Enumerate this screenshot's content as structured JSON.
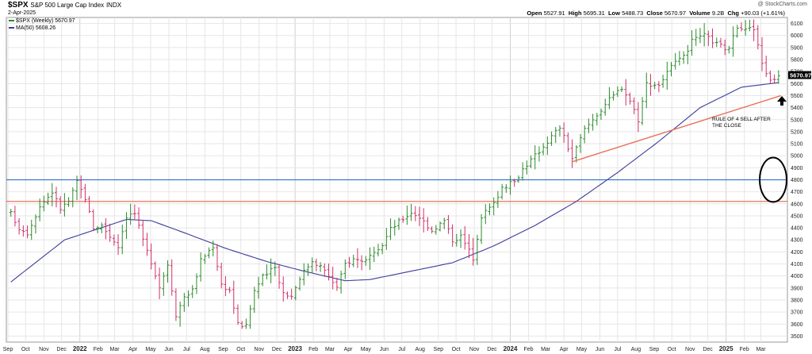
{
  "header": {
    "symbol": "$SPX",
    "description": "S&P 500 Large Cap Index",
    "exchange": "INDX",
    "date": "2-Apr-2025",
    "source": "@ StockCharts.com",
    "stats": {
      "open_label": "Open",
      "open": "5527.91",
      "high_label": "High",
      "high": "5695.31",
      "low_label": "Low",
      "low": "5488.73",
      "close_label": "Close",
      "close": "5670.97",
      "volume_label": "Volume",
      "volume": "9.2B",
      "chg_label": "Chg",
      "chg": "+90.03 (+1.61%)"
    }
  },
  "legend": {
    "price": "$SPX (Weekly) 5670.97",
    "ma": "MA(50) 5608.26"
  },
  "annotation": "RULE OF 4 SELL AFTER THE CLOSE",
  "colors": {
    "up": "#2a8a2a",
    "down": "#d0306a",
    "ma": "#3c3c9c",
    "hline_blue": "#3a78c8",
    "hline_red": "#e8735a",
    "trend": "#e8735a",
    "price_tag_bg": "#000000",
    "price_tag_fg": "#ffffff"
  },
  "chart_data": {
    "type": "ohlc",
    "period": "weekly",
    "y_axis": {
      "min": 3450,
      "max": 6150,
      "side": "right",
      "ticks": [
        3500,
        3600,
        3700,
        3800,
        3900,
        4000,
        4100,
        4200,
        4300,
        4400,
        4500,
        4600,
        4700,
        4800,
        4900,
        5000,
        5100,
        5200,
        5300,
        5400,
        5500,
        5600,
        5700,
        5800,
        5900,
        6000,
        6100
      ]
    },
    "x_axis": {
      "start": "2021-09-01",
      "end": "2025-04-11",
      "ticks": [
        {
          "label": "Sep",
          "date": "2021-09-01",
          "year": false
        },
        {
          "label": "Oct",
          "date": "2021-10-01",
          "year": false
        },
        {
          "label": "Nov",
          "date": "2021-11-01",
          "year": false
        },
        {
          "label": "Dec",
          "date": "2021-12-01",
          "year": false
        },
        {
          "label": "2022",
          "date": "2022-01-01",
          "year": true
        },
        {
          "label": "Feb",
          "date": "2022-02-01",
          "year": false
        },
        {
          "label": "Mar",
          "date": "2022-03-01",
          "year": false
        },
        {
          "label": "Apr",
          "date": "2022-04-01",
          "year": false
        },
        {
          "label": "May",
          "date": "2022-05-01",
          "year": false
        },
        {
          "label": "Jun",
          "date": "2022-06-01",
          "year": false
        },
        {
          "label": "Jul",
          "date": "2022-07-01",
          "year": false
        },
        {
          "label": "Aug",
          "date": "2022-08-01",
          "year": false
        },
        {
          "label": "Sep",
          "date": "2022-09-01",
          "year": false
        },
        {
          "label": "Oct",
          "date": "2022-10-01",
          "year": false
        },
        {
          "label": "Nov",
          "date": "2022-11-01",
          "year": false
        },
        {
          "label": "Dec",
          "date": "2022-12-01",
          "year": false
        },
        {
          "label": "2023",
          "date": "2023-01-01",
          "year": true
        },
        {
          "label": "Feb",
          "date": "2023-02-01",
          "year": false
        },
        {
          "label": "Mar",
          "date": "2023-03-01",
          "year": false
        },
        {
          "label": "Apr",
          "date": "2023-04-01",
          "year": false
        },
        {
          "label": "May",
          "date": "2023-05-01",
          "year": false
        },
        {
          "label": "Jun",
          "date": "2023-06-01",
          "year": false
        },
        {
          "label": "Jul",
          "date": "2023-07-01",
          "year": false
        },
        {
          "label": "Aug",
          "date": "2023-08-01",
          "year": false
        },
        {
          "label": "Sep",
          "date": "2023-09-01",
          "year": false
        },
        {
          "label": "Oct",
          "date": "2023-10-01",
          "year": false
        },
        {
          "label": "Nov",
          "date": "2023-11-01",
          "year": false
        },
        {
          "label": "Dec",
          "date": "2023-12-01",
          "year": false
        },
        {
          "label": "2024",
          "date": "2024-01-01",
          "year": true
        },
        {
          "label": "Feb",
          "date": "2024-02-01",
          "year": false
        },
        {
          "label": "Mar",
          "date": "2024-03-01",
          "year": false
        },
        {
          "label": "Apr",
          "date": "2024-04-01",
          "year": false
        },
        {
          "label": "May",
          "date": "2024-05-01",
          "year": false
        },
        {
          "label": "Jun",
          "date": "2024-06-01",
          "year": false
        },
        {
          "label": "Jul",
          "date": "2024-07-01",
          "year": false
        },
        {
          "label": "Aug",
          "date": "2024-08-01",
          "year": false
        },
        {
          "label": "Sep",
          "date": "2024-09-01",
          "year": false
        },
        {
          "label": "Oct",
          "date": "2024-10-01",
          "year": false
        },
        {
          "label": "Nov",
          "date": "2024-11-01",
          "year": false
        },
        {
          "label": "Dec",
          "date": "2024-12-01",
          "year": false
        },
        {
          "label": "2025",
          "date": "2025-01-01",
          "year": true
        },
        {
          "label": "Feb",
          "date": "2025-02-01",
          "year": false
        },
        {
          "label": "Mar",
          "date": "2025-03-01",
          "year": false
        }
      ]
    },
    "price_anchors": [
      [
        "2021-09-06",
        4520
      ],
      [
        "2021-09-20",
        4400
      ],
      [
        "2021-10-04",
        4360
      ],
      [
        "2021-10-25",
        4580
      ],
      [
        "2021-11-15",
        4700
      ],
      [
        "2021-11-29",
        4560
      ],
      [
        "2021-12-13",
        4620
      ],
      [
        "2021-12-27",
        4780
      ],
      [
        "2022-01-10",
        4650
      ],
      [
        "2022-01-24",
        4400
      ],
      [
        "2022-02-07",
        4420
      ],
      [
        "2022-02-21",
        4330
      ],
      [
        "2022-03-07",
        4250
      ],
      [
        "2022-03-21",
        4500
      ],
      [
        "2022-04-04",
        4520
      ],
      [
        "2022-04-18",
        4290
      ],
      [
        "2022-05-02",
        4120
      ],
      [
        "2022-05-16",
        3910
      ],
      [
        "2022-05-30",
        4100
      ],
      [
        "2022-06-13",
        3680
      ],
      [
        "2022-06-27",
        3830
      ],
      [
        "2022-07-11",
        3880
      ],
      [
        "2022-07-25",
        4130
      ],
      [
        "2022-08-15",
        4250
      ],
      [
        "2022-08-29",
        3930
      ],
      [
        "2022-09-12",
        3880
      ],
      [
        "2022-09-26",
        3600
      ],
      [
        "2022-10-10",
        3580
      ],
      [
        "2022-10-24",
        3880
      ],
      [
        "2022-11-07",
        3990
      ],
      [
        "2022-11-28",
        4070
      ],
      [
        "2022-12-12",
        3860
      ],
      [
        "2022-12-26",
        3830
      ],
      [
        "2023-01-09",
        3990
      ],
      [
        "2023-01-30",
        4130
      ],
      [
        "2023-02-13",
        4080
      ],
      [
        "2023-02-27",
        4000
      ],
      [
        "2023-03-13",
        3900
      ],
      [
        "2023-03-27",
        4100
      ],
      [
        "2023-04-10",
        4140
      ],
      [
        "2023-05-01",
        4130
      ],
      [
        "2023-05-22",
        4200
      ],
      [
        "2023-06-12",
        4390
      ],
      [
        "2023-06-26",
        4450
      ],
      [
        "2023-07-17",
        4530
      ],
      [
        "2023-07-31",
        4490
      ],
      [
        "2023-08-21",
        4380
      ],
      [
        "2023-09-11",
        4460
      ],
      [
        "2023-09-25",
        4300
      ],
      [
        "2023-10-09",
        4330
      ],
      [
        "2023-10-30",
        4150
      ],
      [
        "2023-11-13",
        4500
      ],
      [
        "2023-12-04",
        4600
      ],
      [
        "2023-12-18",
        4740
      ],
      [
        "2024-01-08",
        4780
      ],
      [
        "2024-01-22",
        4890
      ],
      [
        "2024-02-12",
        5000
      ],
      [
        "2024-03-04",
        5120
      ],
      [
        "2024-03-25",
        5240
      ],
      [
        "2024-04-15",
        4980
      ],
      [
        "2024-05-06",
        5220
      ],
      [
        "2024-05-20",
        5300
      ],
      [
        "2024-06-10",
        5430
      ],
      [
        "2024-07-08",
        5570
      ],
      [
        "2024-07-22",
        5460
      ],
      [
        "2024-08-05",
        5300
      ],
      [
        "2024-08-19",
        5600
      ],
      [
        "2024-09-09",
        5590
      ],
      [
        "2024-09-30",
        5740
      ],
      [
        "2024-10-21",
        5820
      ],
      [
        "2024-11-04",
        5950
      ],
      [
        "2024-11-25",
        6000
      ],
      [
        "2024-12-16",
        5930
      ],
      [
        "2025-01-06",
        5880
      ],
      [
        "2025-01-20",
        6080
      ],
      [
        "2025-02-17",
        6050
      ],
      [
        "2025-03-03",
        5770
      ],
      [
        "2025-03-17",
        5620
      ],
      [
        "2025-03-31",
        5670
      ]
    ],
    "ma50_anchors": [
      [
        "2021-09-06",
        3950
      ],
      [
        "2021-12-06",
        4300
      ],
      [
        "2022-03-21",
        4470
      ],
      [
        "2022-05-02",
        4460
      ],
      [
        "2022-06-27",
        4360
      ],
      [
        "2022-09-05",
        4230
      ],
      [
        "2022-11-14",
        4120
      ],
      [
        "2023-01-16",
        4040
      ],
      [
        "2023-03-27",
        3960
      ],
      [
        "2023-05-08",
        3970
      ],
      [
        "2023-07-17",
        4040
      ],
      [
        "2023-09-25",
        4110
      ],
      [
        "2023-12-04",
        4250
      ],
      [
        "2024-02-12",
        4420
      ],
      [
        "2024-04-22",
        4620
      ],
      [
        "2024-07-01",
        4860
      ],
      [
        "2024-09-09",
        5120
      ],
      [
        "2024-11-18",
        5400
      ],
      [
        "2025-01-27",
        5570
      ],
      [
        "2025-03-31",
        5608
      ]
    ],
    "horizontal_lines": [
      {
        "value": 4800,
        "color": "hline_blue"
      },
      {
        "value": 4620,
        "color": "hline_red"
      }
    ],
    "trendline": [
      [
        "2024-04-15",
        4950
      ],
      [
        "2025-04-04",
        5500
      ]
    ],
    "last_price": 5670.97
  }
}
